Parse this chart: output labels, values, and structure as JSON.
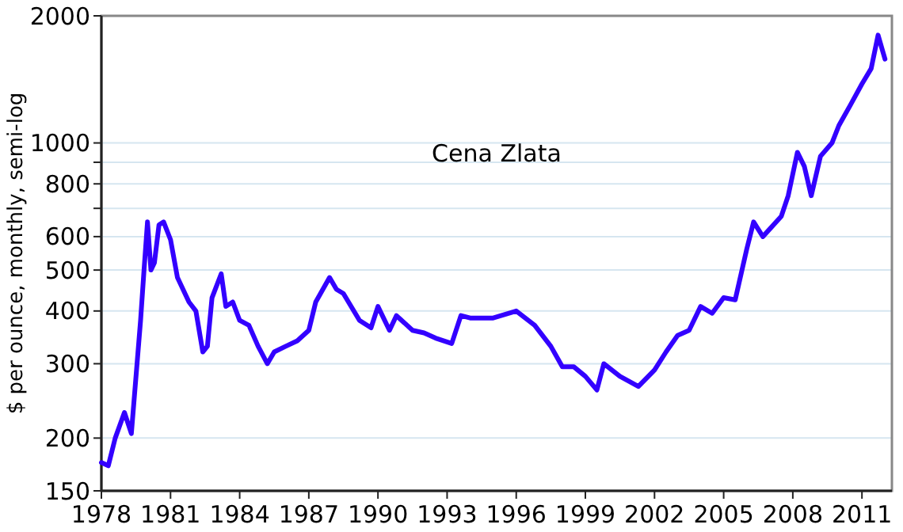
{
  "chart_data": {
    "type": "line",
    "title": "Cena Zlata",
    "ylabel": "$ per ounce, monthly, semi-log",
    "log": true,
    "grid": "y",
    "line_style": "solid",
    "xlim": [
      1978,
      2012.3
    ],
    "xticks": [
      1978,
      1981,
      1984,
      1987,
      1990,
      1993,
      1996,
      1999,
      2002,
      2005,
      2008,
      2011
    ],
    "ylim": [
      150,
      2000
    ],
    "yticks": [
      150,
      200,
      300,
      400,
      500,
      600,
      {
        "value": 700,
        "label": null
      },
      800,
      {
        "value": 900,
        "label": null
      },
      1000,
      2000
    ],
    "series": [
      {
        "color": "#3300ff",
        "x": [
          1978,
          1978.3,
          1978.6,
          1979,
          1979.3,
          1979.7,
          1979.85,
          1980,
          1980.15,
          1980.3,
          1980.5,
          1980.7,
          1981,
          1981.3,
          1981.8,
          1982.1,
          1982.4,
          1982.6,
          1982.8,
          1983.2,
          1983.4,
          1983.7,
          1984,
          1984.4,
          1984.8,
          1985.2,
          1985.5,
          1986,
          1986.5,
          1987,
          1987.3,
          1987.9,
          1988.2,
          1988.5,
          1989.2,
          1989.7,
          1990,
          1990.5,
          1990.8,
          1991.5,
          1992,
          1992.5,
          1993.2,
          1993.6,
          1994,
          1995,
          1996,
          1996.8,
          1997.5,
          1998,
          1998.5,
          1999,
          1999.5,
          1999.8,
          2000.5,
          2001.3,
          2002,
          2002.5,
          2003,
          2003.5,
          2004,
          2004.5,
          2005,
          2005.5,
          2006,
          2006.3,
          2006.7,
          2007.5,
          2007.8,
          2008.2,
          2008.5,
          2008.8,
          2009.2,
          2009.7,
          2010,
          2010.5,
          2011,
          2011.4,
          2011.7,
          2011.9,
          2012
        ],
        "values": [
          175,
          172,
          200,
          230,
          205,
          380,
          500,
          650,
          500,
          520,
          640,
          650,
          590,
          480,
          420,
          400,
          320,
          330,
          430,
          490,
          410,
          420,
          380,
          370,
          330,
          300,
          320,
          330,
          340,
          360,
          420,
          480,
          450,
          440,
          380,
          365,
          410,
          360,
          390,
          360,
          355,
          345,
          335,
          390,
          385,
          385,
          400,
          370,
          330,
          295,
          295,
          280,
          260,
          300,
          280,
          265,
          290,
          320,
          350,
          360,
          410,
          395,
          430,
          425,
          560,
          650,
          600,
          670,
          750,
          950,
          880,
          750,
          930,
          1000,
          1100,
          1230,
          1380,
          1500,
          1800,
          1650,
          1580
        ]
      }
    ]
  }
}
